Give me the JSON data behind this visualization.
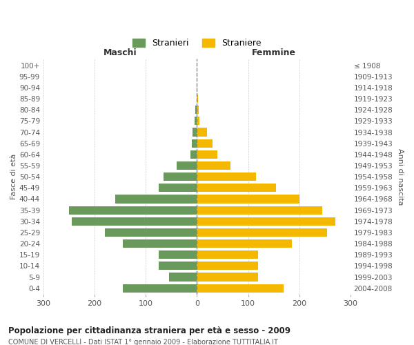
{
  "age_groups": [
    "100+",
    "95-99",
    "90-94",
    "85-89",
    "80-84",
    "75-79",
    "70-74",
    "65-69",
    "60-64",
    "55-59",
    "50-54",
    "45-49",
    "40-44",
    "35-39",
    "30-34",
    "25-29",
    "20-24",
    "15-19",
    "10-14",
    "5-9",
    "0-4"
  ],
  "birth_years": [
    "≤ 1908",
    "1909-1913",
    "1914-1918",
    "1919-1923",
    "1924-1928",
    "1929-1933",
    "1934-1938",
    "1939-1943",
    "1944-1948",
    "1949-1953",
    "1954-1958",
    "1959-1963",
    "1964-1968",
    "1969-1973",
    "1974-1978",
    "1979-1983",
    "1984-1988",
    "1989-1993",
    "1994-1998",
    "1999-2003",
    "2004-2008"
  ],
  "maschi": [
    0,
    0,
    0,
    0,
    3,
    4,
    9,
    10,
    13,
    40,
    65,
    75,
    160,
    250,
    245,
    180,
    145,
    75,
    75,
    55,
    145
  ],
  "femmine": [
    0,
    0,
    1,
    2,
    3,
    5,
    20,
    30,
    40,
    65,
    115,
    155,
    200,
    245,
    270,
    255,
    185,
    120,
    120,
    120,
    170
  ],
  "maschi_color": "#6a9a5b",
  "femmine_color": "#f5b800",
  "title": "Popolazione per cittadinanza straniera per età e sesso - 2009",
  "subtitle": "COMUNE DI VERCELLI - Dati ISTAT 1° gennaio 2009 - Elaborazione TUTTITALIA.IT",
  "xlabel_left": "Maschi",
  "xlabel_right": "Femmine",
  "ylabel_left": "Fasce di età",
  "ylabel_right": "Anni di nascita",
  "legend_maschi": "Stranieri",
  "legend_femmine": "Straniere",
  "xlim": 300,
  "bg_color": "#ffffff",
  "grid_color": "#cccccc"
}
